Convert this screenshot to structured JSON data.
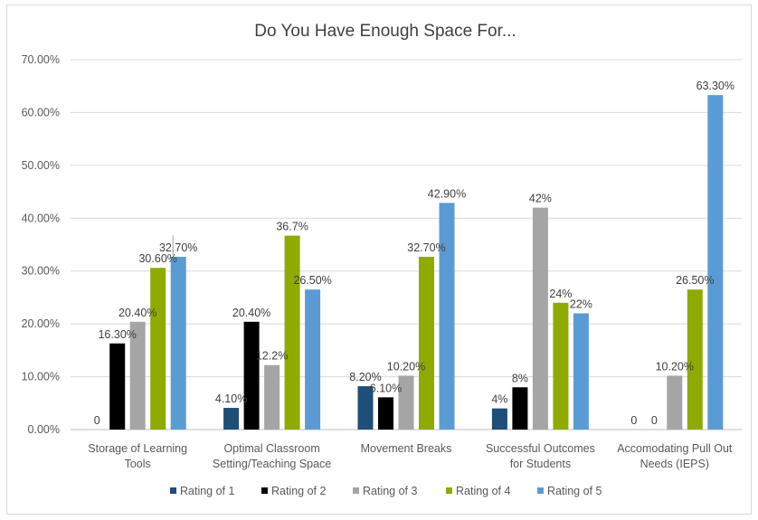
{
  "chart_data": {
    "type": "bar",
    "title": "Do You Have Enough Space For...",
    "xlabel": "",
    "ylabel": "",
    "ylim": [
      0,
      0.7
    ],
    "y_ticks": [
      "0.00%",
      "10.00%",
      "20.00%",
      "30.00%",
      "40.00%",
      "50.00%",
      "60.00%",
      "70.00%"
    ],
    "categories": [
      [
        "Storage of Learning",
        "Tools"
      ],
      [
        "Optimal Classroom",
        "Setting/Teaching Space"
      ],
      [
        "Movement Breaks"
      ],
      [
        "Successful Outcomes",
        "for Students"
      ],
      [
        "Accomodating Pull Out",
        "Needs (IEPS)"
      ]
    ],
    "series": [
      {
        "name": "Rating of 1",
        "color": "#1f4e79",
        "values": [
          0,
          0.041,
          0.082,
          0.04,
          0
        ],
        "labels": [
          "0",
          "4.10%",
          "8.20%",
          "4%",
          "0"
        ]
      },
      {
        "name": "Rating of 2",
        "color": "#000000",
        "values": [
          0.163,
          0.204,
          0.061,
          0.08,
          0
        ],
        "labels": [
          "16.30%",
          "20.40%",
          "6.10%",
          "8%",
          "0"
        ]
      },
      {
        "name": "Rating of 3",
        "color": "#a5a5a5",
        "values": [
          0.204,
          0.122,
          0.102,
          0.42,
          0.102
        ],
        "labels": [
          "20.40%",
          "12.2%",
          "10.20%",
          "42%",
          "10.20%"
        ]
      },
      {
        "name": "Rating of 4",
        "color": "#8faa00",
        "values": [
          0.306,
          0.367,
          0.327,
          0.24,
          0.265
        ],
        "labels": [
          "30.60%",
          "36.7%",
          "32.70%",
          "24%",
          "26.50%"
        ]
      },
      {
        "name": "Rating of 5",
        "color": "#5b9bd5",
        "values": [
          0.327,
          0.265,
          0.429,
          0.22,
          0.633
        ],
        "labels": [
          "32.70%",
          "26.50%",
          "42.90%",
          "22%",
          "63.30%"
        ]
      }
    ],
    "grid": true,
    "legend_position": "bottom"
  }
}
